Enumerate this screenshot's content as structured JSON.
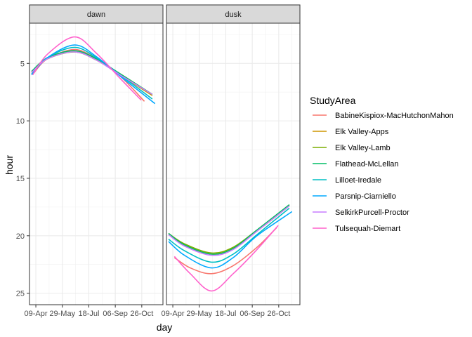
{
  "chart_data": {
    "type": "line",
    "xlabel": "day",
    "ylabel": "hour",
    "x_axis": {
      "type": "date",
      "range": [
        "2023-03-28",
        "2023-12-05"
      ],
      "ticks": [
        "09-Apr",
        "29-May",
        "18-Jul",
        "06-Sep",
        "26-Oct"
      ]
    },
    "y_axis": {
      "reversed": true,
      "range": [
        1.5,
        26
      ],
      "ticks": [
        5,
        10,
        15,
        20,
        25
      ]
    },
    "grid": true,
    "legend": {
      "title": "StudyArea",
      "placement": "right"
    },
    "facets": [
      "dawn",
      "dusk"
    ],
    "series": [
      {
        "name": "BabineKispiox-MacHutchonMahon",
        "color": "#F8766D",
        "dawn": {
          "x": [
            "2023-04-04",
            "2023-05-01",
            "2023-06-21",
            "2023-08-01",
            "2023-09-15",
            "2023-10-31"
          ],
          "y": [
            5.9,
            4.6,
            3.8,
            4.6,
            6.1,
            8.3
          ]
        },
        "dusk": {
          "x": [
            "2023-04-12",
            "2023-05-12",
            "2023-06-21",
            "2023-08-01",
            "2023-09-15",
            "2023-10-22"
          ],
          "y": [
            21.9,
            22.8,
            23.3,
            22.6,
            21.0,
            19.3
          ]
        }
      },
      {
        "name": "Elk Valley-Apps",
        "color": "#CD9600",
        "dawn": {
          "x": [
            "2023-04-01",
            "2023-05-01",
            "2023-06-21",
            "2023-08-01",
            "2023-09-15",
            "2023-11-15"
          ],
          "y": [
            5.8,
            4.6,
            4.0,
            4.7,
            6.0,
            7.8
          ]
        },
        "dusk": {
          "x": [
            "2023-04-01",
            "2023-05-01",
            "2023-06-21",
            "2023-08-01",
            "2023-09-15",
            "2023-11-15"
          ],
          "y": [
            19.9,
            20.8,
            21.6,
            21.1,
            19.6,
            17.4
          ]
        }
      },
      {
        "name": "Elk Valley-Lamb",
        "color": "#7CAE00",
        "dawn": {
          "x": [
            "2023-04-01",
            "2023-05-01",
            "2023-06-21",
            "2023-08-01",
            "2023-09-15",
            "2023-11-15"
          ],
          "y": [
            5.7,
            4.6,
            4.0,
            4.7,
            5.9,
            7.7
          ]
        },
        "dusk": {
          "x": [
            "2023-04-01",
            "2023-05-01",
            "2023-06-21",
            "2023-08-01",
            "2023-09-15",
            "2023-11-15"
          ],
          "y": [
            19.8,
            20.7,
            21.5,
            21.0,
            19.5,
            17.3
          ]
        }
      },
      {
        "name": "Flathead-McLellan",
        "color": "#00BE67",
        "dawn": {
          "x": [
            "2023-04-01",
            "2023-05-01",
            "2023-06-21",
            "2023-08-01",
            "2023-09-15",
            "2023-11-15"
          ],
          "y": [
            5.7,
            4.5,
            3.9,
            4.6,
            5.9,
            7.7
          ]
        },
        "dusk": {
          "x": [
            "2023-04-01",
            "2023-05-01",
            "2023-06-21",
            "2023-08-01",
            "2023-09-15",
            "2023-11-15"
          ],
          "y": [
            19.8,
            20.8,
            21.6,
            21.1,
            19.5,
            17.3
          ]
        }
      },
      {
        "name": "Lilloet-Iredale",
        "color": "#00BFC4",
        "dawn": {
          "x": [
            "2023-04-01",
            "2023-05-01",
            "2023-06-21",
            "2023-08-01",
            "2023-09-15",
            "2023-11-15"
          ],
          "y": [
            5.9,
            4.5,
            3.6,
            4.5,
            6.0,
            8.1
          ]
        },
        "dusk": {
          "x": [
            "2023-04-01",
            "2023-05-01",
            "2023-06-21",
            "2023-08-01",
            "2023-09-15",
            "2023-11-15"
          ],
          "y": [
            20.3,
            21.3,
            22.3,
            21.6,
            19.9,
            17.6
          ]
        }
      },
      {
        "name": "Parsnip-Ciarniello",
        "color": "#00A9FF",
        "dawn": {
          "x": [
            "2023-04-01",
            "2023-05-01",
            "2023-06-21",
            "2023-08-01",
            "2023-09-15",
            "2023-11-20"
          ],
          "y": [
            6.0,
            4.5,
            3.4,
            4.4,
            6.1,
            8.5
          ]
        },
        "dusk": {
          "x": [
            "2023-04-01",
            "2023-05-01",
            "2023-06-21",
            "2023-08-01",
            "2023-09-15",
            "2023-11-20"
          ],
          "y": [
            20.5,
            21.7,
            22.8,
            21.9,
            20.0,
            17.9
          ]
        }
      },
      {
        "name": "SelkirkPurcell-Proctor",
        "color": "#C77CFF",
        "dawn": {
          "x": [
            "2023-04-01",
            "2023-05-01",
            "2023-06-21",
            "2023-08-01",
            "2023-09-15",
            "2023-11-15"
          ],
          "y": [
            5.8,
            4.6,
            4.0,
            4.7,
            6.0,
            7.7
          ]
        },
        "dusk": {
          "x": [
            "2023-04-01",
            "2023-05-01",
            "2023-06-21",
            "2023-08-01",
            "2023-09-15",
            "2023-11-15"
          ],
          "y": [
            19.9,
            20.9,
            21.7,
            21.2,
            19.6,
            17.4
          ]
        }
      },
      {
        "name": "Tulsequah-Diemart",
        "color": "#FF61CC",
        "dawn": {
          "x": [
            "2023-04-03",
            "2023-05-01",
            "2023-06-21",
            "2023-08-01",
            "2023-09-15",
            "2023-10-25"
          ],
          "y": [
            6.0,
            4.2,
            2.7,
            4.1,
            6.3,
            8.2
          ]
        },
        "dusk": {
          "x": [
            "2023-04-12",
            "2023-05-12",
            "2023-06-21",
            "2023-08-01",
            "2023-09-15",
            "2023-10-25"
          ],
          "y": [
            21.8,
            23.3,
            24.8,
            23.3,
            21.2,
            19.1
          ]
        }
      }
    ]
  }
}
